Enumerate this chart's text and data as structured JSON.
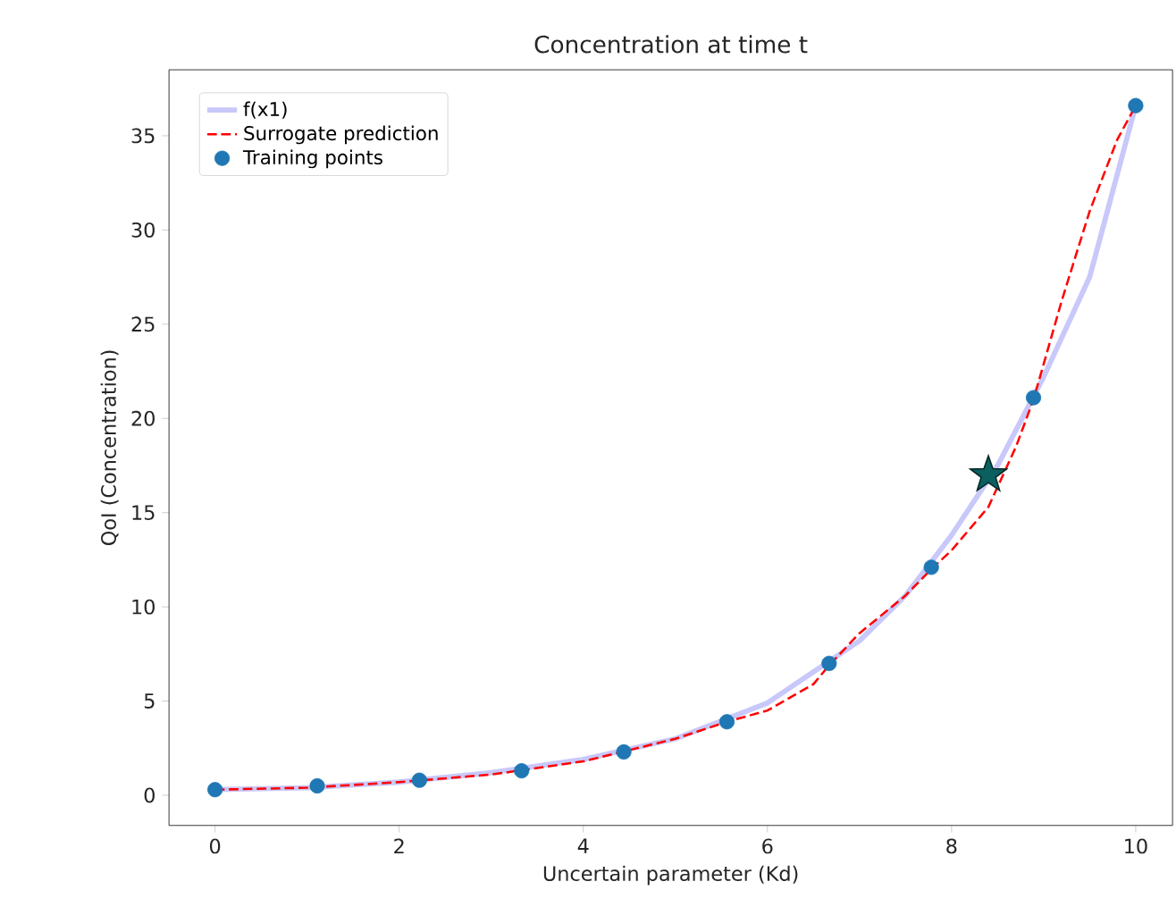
{
  "chart_data": {
    "type": "line",
    "title": "Concentration at time t",
    "xlabel": "Uncertain parameter (Kd)",
    "ylabel": "QoI (Concentration)",
    "xlim": [
      -0.5,
      10.4
    ],
    "ylim": [
      -1.6,
      38.5
    ],
    "xticks": [
      0,
      2,
      4,
      6,
      8,
      10
    ],
    "yticks": [
      0,
      5,
      10,
      15,
      20,
      25,
      30,
      35
    ],
    "grid": false,
    "legend": "top left",
    "series": [
      {
        "name": "f(x1)",
        "color": "#c8c8fa",
        "line_style": "solid",
        "marker": "none",
        "x": [
          0,
          1,
          2,
          3,
          4,
          5,
          6,
          7,
          7.5,
          8,
          8.5,
          9,
          9.5,
          10
        ],
        "values": [
          0.3,
          0.4,
          0.7,
          1.2,
          1.9,
          3.0,
          4.9,
          8.2,
          10.6,
          13.8,
          17.5,
          22.2,
          27.5,
          36.6
        ]
      },
      {
        "name": "Surrogate prediction",
        "color": "#ff0000",
        "line_style": "dashed",
        "marker": "none",
        "x": [
          0,
          1,
          2,
          3,
          4,
          5,
          5.56,
          6,
          6.5,
          6.67,
          7,
          7.5,
          7.78,
          8,
          8.4,
          8.7,
          8.89,
          9.2,
          9.5,
          9.8,
          10
        ],
        "values": [
          0.3,
          0.4,
          0.7,
          1.1,
          1.8,
          3.0,
          3.9,
          4.5,
          5.9,
          6.9,
          8.6,
          10.6,
          12.0,
          13.0,
          15.3,
          18.5,
          21.0,
          26.3,
          31.0,
          34.8,
          36.6
        ]
      },
      {
        "name": "Training points",
        "type": "scatter",
        "color": "#1f77b4",
        "marker": "circle",
        "x": [
          0,
          1.11,
          2.22,
          3.33,
          4.44,
          5.56,
          6.67,
          7.78,
          8.89,
          10
        ],
        "values": [
          0.3,
          0.5,
          0.8,
          1.3,
          2.3,
          3.9,
          7.0,
          12.1,
          21.1,
          36.6
        ]
      },
      {
        "type": "scatter",
        "color": "#0b5f5f",
        "marker": "star",
        "x": [
          8.4
        ],
        "values": [
          17.0
        ]
      }
    ]
  }
}
